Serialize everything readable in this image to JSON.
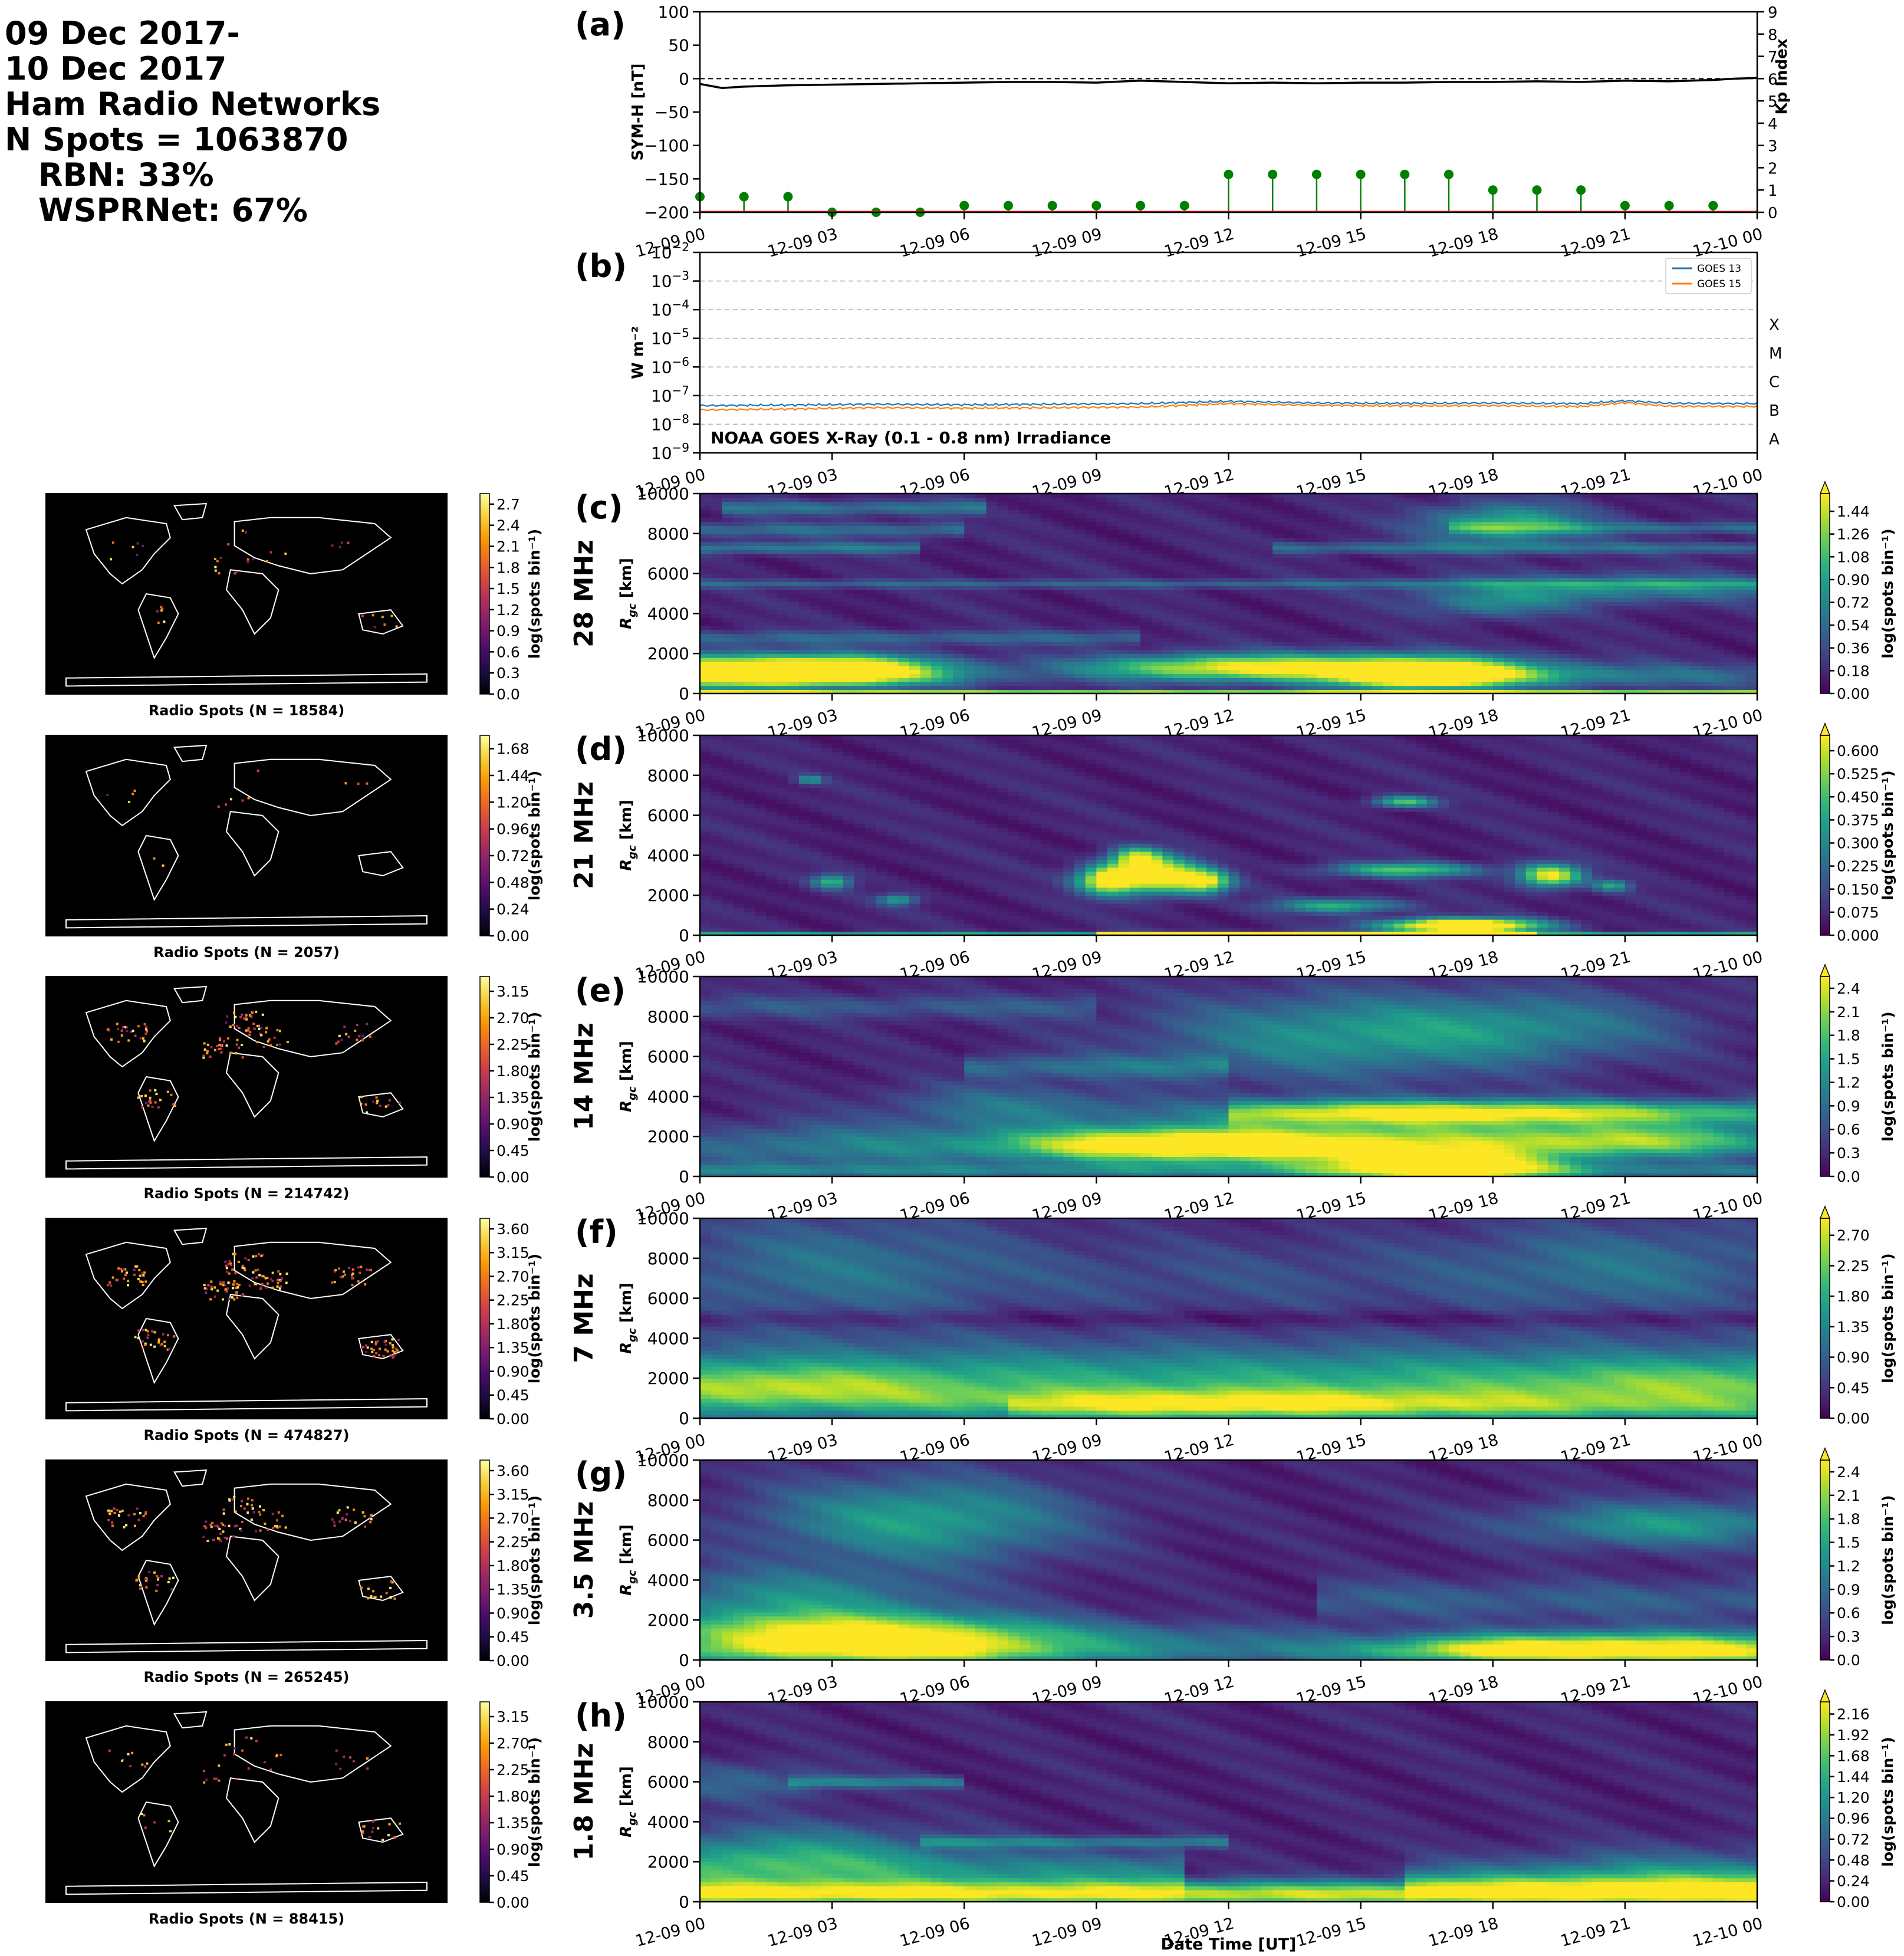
{
  "header": {
    "lines": [
      "09 Dec 2017-",
      "10 Dec 2017",
      "Ham Radio Networks",
      "N Spots = 1063870"
    ],
    "sublines": [
      "RBN: 33%",
      "WSPRNet: 67%"
    ]
  },
  "time_ticks": [
    "12-09 00",
    "12-09 03",
    "12-09 06",
    "12-09 09",
    "12-09 12",
    "12-09 15",
    "12-09 18",
    "12-09 21",
    "12-10 00"
  ],
  "xlabel": "Date Time [UT]",
  "colorbar_label": "log(spots bin⁻¹)",
  "distance_ylabel": "R_gc [km]",
  "chart_data": [
    {
      "id": "a",
      "type": "line",
      "panel_label": "(a)",
      "ylabel": "SYM-H [nT]",
      "y2label": "Kp Index",
      "ylim": [
        -200,
        100
      ],
      "y2lim": [
        0,
        9
      ],
      "yticks": [
        100,
        50,
        0,
        -50,
        -100,
        -150,
        -200
      ],
      "y2ticks": [
        0,
        1,
        2,
        3,
        4,
        5,
        6,
        7,
        8,
        9
      ],
      "y2tick_colors": [
        "#008000",
        "#008000",
        "#008000",
        "#008000",
        "#ff8c00",
        "#ff8c00",
        "#ff0000",
        "#ff0000",
        "#ff0000",
        "#ff0000"
      ],
      "symh": {
        "x_hours": [
          0,
          0.5,
          1,
          2,
          3,
          4,
          5,
          6,
          7,
          8,
          9,
          10,
          11,
          12,
          13,
          14,
          15,
          16,
          17,
          18,
          19,
          20,
          21,
          22,
          23,
          23.5,
          24
        ],
        "values": [
          -8,
          -14,
          -12,
          -10,
          -9,
          -8,
          -7,
          -6,
          -5,
          -5,
          -6,
          -3,
          -5,
          -7,
          -6,
          -7,
          -6,
          -6,
          -5,
          -5,
          -4,
          -5,
          -3,
          -4,
          -2,
          0,
          1
        ]
      },
      "kp": {
        "x_hours": [
          0,
          1,
          2,
          3,
          4,
          5,
          6,
          7,
          8,
          9,
          10,
          11,
          12,
          13,
          14,
          15,
          16,
          17,
          18,
          19,
          20,
          21,
          22,
          23
        ],
        "values": [
          0.7,
          0.7,
          0.7,
          0,
          0,
          0,
          0.3,
          0.3,
          0.3,
          0.3,
          0.3,
          0.3,
          1.7,
          1.7,
          1.7,
          1.7,
          1.7,
          1.7,
          1,
          1,
          1,
          0.3,
          0.3,
          0.3
        ]
      }
    },
    {
      "id": "b",
      "type": "line",
      "panel_label": "(b)",
      "ylabel": "W m⁻²",
      "log_scale": true,
      "ylim_exp": [
        -9,
        -2
      ],
      "ytick_exponents": [
        -2,
        -3,
        -4,
        -5,
        -6,
        -7,
        -8,
        -9
      ],
      "flare_classes": [
        {
          "label": "X",
          "exp": -4
        },
        {
          "label": "M",
          "exp": -5
        },
        {
          "label": "C",
          "exp": -6
        },
        {
          "label": "B",
          "exp": -7
        },
        {
          "label": "A",
          "exp": -8
        }
      ],
      "annotation": "NOAA GOES X-Ray (0.1 - 0.8 nm) Irradiance",
      "legend_position": "upper-right",
      "series": [
        {
          "name": "GOES 13",
          "color": "#1f77b4",
          "x_hours": [
            0,
            2,
            4,
            6,
            8,
            10,
            12,
            14,
            16,
            18,
            20,
            21,
            22,
            24
          ],
          "log10_values": [
            -7.35,
            -7.33,
            -7.3,
            -7.32,
            -7.3,
            -7.28,
            -7.2,
            -7.26,
            -7.27,
            -7.26,
            -7.28,
            -7.18,
            -7.27,
            -7.28
          ]
        },
        {
          "name": "GOES 15",
          "color": "#ff7f0e",
          "x_hours": [
            0,
            2,
            4,
            6,
            8,
            10,
            12,
            14,
            16,
            18,
            20,
            21,
            22,
            24
          ],
          "log10_values": [
            -7.5,
            -7.47,
            -7.42,
            -7.44,
            -7.42,
            -7.4,
            -7.28,
            -7.34,
            -7.36,
            -7.35,
            -7.38,
            -7.25,
            -7.37,
            -7.38
          ]
        }
      ]
    },
    {
      "id": "c",
      "type": "heatmap",
      "panel_label": "(c)",
      "band": "28 MHz",
      "map_caption": "Radio Spots (N = 18584)",
      "map_cbar_ticks": [
        "0.0",
        "0.3",
        "0.6",
        "0.9",
        "1.2",
        "1.5",
        "1.8",
        "2.1",
        "2.4",
        "2.7"
      ],
      "map_cbar_max": 2.85,
      "cbar_ticks": [
        "0.00",
        "0.18",
        "0.36",
        "0.54",
        "0.72",
        "0.90",
        "1.08",
        "1.26",
        "1.44"
      ],
      "cbar_max": 1.58,
      "ylim": [
        0,
        10000
      ],
      "yticks": [
        0,
        2000,
        4000,
        6000,
        8000,
        10000
      ],
      "blobs": [
        {
          "t": 0.5,
          "r": 1200,
          "st": 2.2,
          "sr": 550,
          "a": 1.5
        },
        {
          "t": 3.5,
          "r": 1300,
          "st": 1.6,
          "sr": 450,
          "a": 1.2
        },
        {
          "t": 2.5,
          "r": 800,
          "st": 2.5,
          "sr": 350,
          "a": 0.8
        },
        {
          "t": 11.5,
          "r": 1300,
          "st": 2.2,
          "sr": 450,
          "a": 1.1
        },
        {
          "t": 15.5,
          "r": 1400,
          "st": 2.5,
          "sr": 500,
          "a": 0.9
        },
        {
          "t": 16.5,
          "r": 900,
          "st": 1.4,
          "sr": 450,
          "a": 1.7
        },
        {
          "t": 20,
          "r": 900,
          "st": 4,
          "sr": 400,
          "a": 0.5
        },
        {
          "t": 18.3,
          "r": 8500,
          "st": 1.3,
          "sr": 700,
          "a": 0.85
        },
        {
          "t": 21,
          "r": 5300,
          "st": 3,
          "sr": 500,
          "a": 0.6
        },
        {
          "t": 18,
          "r": 4500,
          "st": 1.2,
          "sr": 500,
          "a": 0.5
        }
      ],
      "stripes": [
        {
          "r": 9300,
          "t0": 0.5,
          "t1": 6.5,
          "sr": 250,
          "a": 0.45
        },
        {
          "r": 8200,
          "t0": 0,
          "t1": 6,
          "sr": 250,
          "a": 0.4
        },
        {
          "r": 7300,
          "t0": 0,
          "t1": 5,
          "sr": 200,
          "a": 0.5
        },
        {
          "r": 7300,
          "t0": 13,
          "t1": 24,
          "sr": 200,
          "a": 0.4
        },
        {
          "r": 8300,
          "t0": 17,
          "t1": 24,
          "sr": 200,
          "a": 0.4
        },
        {
          "r": 5500,
          "t0": 0,
          "t1": 24,
          "sr": 150,
          "a": 0.35
        },
        {
          "r": 2800,
          "t0": 0,
          "t1": 10,
          "sr": 250,
          "a": 0.35
        },
        {
          "r": 50,
          "t0": 0,
          "t1": 24,
          "sr": 60,
          "a": 1.5
        }
      ]
    },
    {
      "id": "d",
      "type": "heatmap",
      "panel_label": "(d)",
      "band": "21 MHz",
      "map_caption": "Radio Spots (N = 2057)",
      "map_cbar_ticks": [
        "0.00",
        "0.24",
        "0.48",
        "0.72",
        "0.96",
        "1.20",
        "1.44",
        "1.68"
      ],
      "map_cbar_max": 1.8,
      "cbar_ticks": [
        "0.000",
        "0.075",
        "0.150",
        "0.225",
        "0.300",
        "0.375",
        "0.450",
        "0.525",
        "0.600"
      ],
      "cbar_max": 0.65,
      "ylim": [
        0,
        10000
      ],
      "yticks": [
        0,
        2000,
        4000,
        6000,
        8000,
        10000
      ],
      "blobs": [
        {
          "t": 9.3,
          "r": 2800,
          "st": 0.5,
          "sr": 500,
          "a": 0.7
        },
        {
          "t": 10.5,
          "r": 3000,
          "st": 0.6,
          "sr": 600,
          "a": 0.65
        },
        {
          "t": 11.5,
          "r": 2700,
          "st": 0.4,
          "sr": 400,
          "a": 0.5
        },
        {
          "t": 9.9,
          "r": 3900,
          "st": 0.4,
          "sr": 350,
          "a": 0.5
        },
        {
          "t": 17.3,
          "r": 500,
          "st": 1.2,
          "sr": 250,
          "a": 0.9
        },
        {
          "t": 19.3,
          "r": 3000,
          "st": 0.5,
          "sr": 400,
          "a": 0.6
        },
        {
          "t": 16,
          "r": 3300,
          "st": 1.2,
          "sr": 250,
          "a": 0.4
        },
        {
          "t": 14.5,
          "r": 1500,
          "st": 1,
          "sr": 250,
          "a": 0.35
        },
        {
          "t": 16,
          "r": 6700,
          "st": 0.5,
          "sr": 200,
          "a": 0.4
        },
        {
          "t": 3,
          "r": 2700,
          "st": 0.3,
          "sr": 250,
          "a": 0.35
        },
        {
          "t": 4.5,
          "r": 1800,
          "st": 0.3,
          "sr": 200,
          "a": 0.3
        },
        {
          "t": 2.5,
          "r": 7800,
          "st": 0.2,
          "sr": 150,
          "a": 0.3
        },
        {
          "t": 20.7,
          "r": 2500,
          "st": 0.3,
          "sr": 200,
          "a": 0.3
        }
      ],
      "stripes": [
        {
          "r": 80,
          "t0": 0,
          "t1": 24,
          "sr": 80,
          "a": 0.3
        },
        {
          "r": 80,
          "t0": 9,
          "t1": 19,
          "sr": 80,
          "a": 0.6
        }
      ]
    },
    {
      "id": "e",
      "type": "heatmap",
      "panel_label": "(e)",
      "band": "14 MHz",
      "map_caption": "Radio Spots (N = 214742)",
      "map_cbar_ticks": [
        "0.00",
        "0.45",
        "0.90",
        "1.35",
        "1.80",
        "2.25",
        "2.70",
        "3.15"
      ],
      "map_cbar_max": 3.4,
      "cbar_ticks": [
        "0.0",
        "0.3",
        "0.6",
        "0.9",
        "1.2",
        "1.5",
        "1.8",
        "2.1",
        "2.4"
      ],
      "cbar_max": 2.55,
      "ylim": [
        0,
        10000
      ],
      "yticks": [
        0,
        2000,
        4000,
        6000,
        8000,
        10000
      ],
      "blobs": [
        {
          "t": 10,
          "r": 1600,
          "st": 2.5,
          "sr": 600,
          "a": 2.0
        },
        {
          "t": 14,
          "r": 1600,
          "st": 3,
          "sr": 700,
          "a": 2.0
        },
        {
          "t": 17,
          "r": 500,
          "st": 1.8,
          "sr": 500,
          "a": 2.5
        },
        {
          "t": 21,
          "r": 1800,
          "st": 3,
          "sr": 600,
          "a": 1.9
        },
        {
          "t": 17,
          "r": 3200,
          "st": 4,
          "sr": 500,
          "a": 1.4
        },
        {
          "t": 14.5,
          "r": 7000,
          "st": 3,
          "sr": 1500,
          "a": 1.0
        },
        {
          "t": 19,
          "r": 7500,
          "st": 2.5,
          "sr": 1200,
          "a": 0.7
        },
        {
          "t": 3,
          "r": 1500,
          "st": 3,
          "sr": 800,
          "a": 0.8
        },
        {
          "t": 7,
          "r": 3500,
          "st": 2,
          "sr": 800,
          "a": 0.7
        }
      ],
      "stripes": [
        {
          "r": 8500,
          "t0": 0,
          "t1": 9,
          "sr": 400,
          "a": 0.45
        },
        {
          "r": 5500,
          "t0": 6,
          "t1": 12,
          "sr": 400,
          "a": 0.6
        },
        {
          "r": 300,
          "t0": 0,
          "t1": 24,
          "sr": 250,
          "a": 0.7
        },
        {
          "r": 3200,
          "t0": 12,
          "t1": 24,
          "sr": 400,
          "a": 1.0
        }
      ]
    },
    {
      "id": "f",
      "type": "heatmap",
      "panel_label": "(f)",
      "band": "7 MHz",
      "map_caption": "Radio Spots (N = 474827)",
      "map_cbar_ticks": [
        "0.00",
        "0.45",
        "0.90",
        "1.35",
        "1.80",
        "2.25",
        "2.70",
        "3.15",
        "3.60"
      ],
      "map_cbar_max": 3.8,
      "cbar_ticks": [
        "0.00",
        "0.45",
        "0.90",
        "1.35",
        "1.80",
        "2.25",
        "2.70"
      ],
      "cbar_max": 2.95,
      "ylim": [
        0,
        10000
      ],
      "yticks": [
        0,
        2000,
        4000,
        6000,
        8000,
        10000
      ],
      "blobs": [
        {
          "t": 12,
          "r": 800,
          "st": 5,
          "sr": 500,
          "a": 1.4
        },
        {
          "t": 2,
          "r": 1500,
          "st": 2.5,
          "sr": 700,
          "a": 0.9
        },
        {
          "t": 22,
          "r": 1500,
          "st": 3,
          "sr": 800,
          "a": 0.6
        },
        {
          "t": 3,
          "r": 7500,
          "st": 3,
          "sr": 2000,
          "a": 0.8
        },
        {
          "t": 21,
          "r": 7500,
          "st": 3,
          "sr": 1700,
          "a": 0.8
        },
        {
          "t": 12,
          "r": 7000,
          "st": 4,
          "sr": 1500,
          "a": 0.4
        }
      ],
      "stripes": [
        {
          "r": 1800,
          "t0": 0,
          "t1": 24,
          "sr": 1300,
          "a": 1.5
        },
        {
          "r": 500,
          "t0": 7,
          "t1": 24,
          "sr": 400,
          "a": 0.6
        },
        {
          "r": 5000,
          "t0": 0,
          "t1": 24,
          "sr": 300,
          "a": -0.3
        }
      ]
    },
    {
      "id": "g",
      "type": "heatmap",
      "panel_label": "(g)",
      "band": "3.5 MHz",
      "map_caption": "Radio Spots (N = 265245)",
      "map_cbar_ticks": [
        "0.00",
        "0.45",
        "0.90",
        "1.35",
        "1.80",
        "2.25",
        "2.70",
        "3.15",
        "3.60"
      ],
      "map_cbar_max": 3.8,
      "cbar_ticks": [
        "0.0",
        "0.3",
        "0.6",
        "0.9",
        "1.2",
        "1.5",
        "1.8",
        "2.1",
        "2.4"
      ],
      "cbar_max": 2.55,
      "ylim": [
        0,
        10000
      ],
      "yticks": [
        0,
        2000,
        4000,
        6000,
        8000,
        10000
      ],
      "blobs": [
        {
          "t": 5,
          "r": 1000,
          "st": 2.5,
          "sr": 900,
          "a": 2.2
        },
        {
          "t": 1.5,
          "r": 1300,
          "st": 2,
          "sr": 800,
          "a": 1.4
        },
        {
          "t": 22,
          "r": 600,
          "st": 3,
          "sr": 600,
          "a": 2.0
        },
        {
          "t": 18,
          "r": 600,
          "st": 2,
          "sr": 500,
          "a": 1.2
        },
        {
          "t": 5,
          "r": 7000,
          "st": 2.5,
          "sr": 1500,
          "a": 1.2
        },
        {
          "t": 22,
          "r": 6800,
          "st": 2.5,
          "sr": 800,
          "a": 1.1
        },
        {
          "t": 2,
          "r": 3200,
          "st": 2.5,
          "sr": 1000,
          "a": 0.9
        },
        {
          "t": 11,
          "r": 1200,
          "st": 3,
          "sr": 500,
          "a": 0.5
        }
      ],
      "stripes": [
        {
          "r": 400,
          "t0": 0,
          "t1": 24,
          "sr": 400,
          "a": 0.6
        },
        {
          "r": 3000,
          "t0": 14,
          "t1": 24,
          "sr": 700,
          "a": 0.5
        }
      ]
    },
    {
      "id": "h",
      "type": "heatmap",
      "panel_label": "(h)",
      "band": "1.8 MHz",
      "map_caption": "Radio Spots (N = 88415)",
      "map_cbar_ticks": [
        "0.00",
        "0.45",
        "0.90",
        "1.35",
        "1.80",
        "2.25",
        "2.70",
        "3.15"
      ],
      "map_cbar_max": 3.4,
      "cbar_ticks": [
        "0.00",
        "0.24",
        "0.48",
        "0.72",
        "0.96",
        "1.20",
        "1.44",
        "1.68",
        "1.92",
        "2.16"
      ],
      "cbar_max": 2.3,
      "ylim": [
        0,
        10000
      ],
      "yticks": [
        0,
        2000,
        4000,
        6000,
        8000,
        10000
      ],
      "blobs": [
        {
          "t": 2,
          "r": 2500,
          "st": 2.5,
          "sr": 1000,
          "a": 0.9
        },
        {
          "t": 1,
          "r": 6000,
          "st": 1.5,
          "sr": 700,
          "a": 0.5
        },
        {
          "t": 22,
          "r": 1500,
          "st": 3,
          "sr": 900,
          "a": 0.6
        }
      ],
      "stripes": [
        {
          "r": 400,
          "t0": 0,
          "t1": 24,
          "sr": 450,
          "a": 1.9
        },
        {
          "r": 1500,
          "t0": 0,
          "t1": 11,
          "sr": 700,
          "a": 0.8
        },
        {
          "r": 3000,
          "t0": 5,
          "t1": 12,
          "sr": 200,
          "a": 0.7
        },
        {
          "r": 6000,
          "t0": 2,
          "t1": 6,
          "sr": 200,
          "a": 0.7
        },
        {
          "r": 1000,
          "t0": 16,
          "t1": 24,
          "sr": 600,
          "a": 0.7
        }
      ]
    }
  ]
}
